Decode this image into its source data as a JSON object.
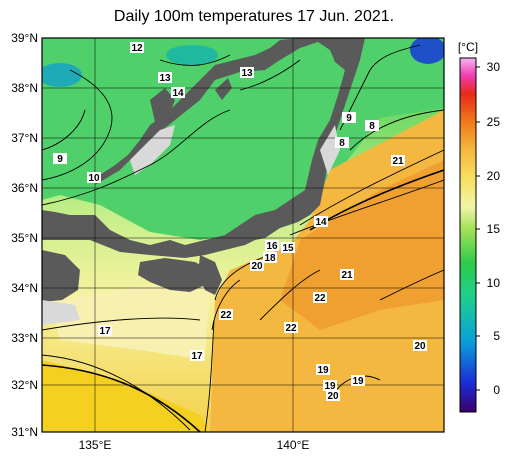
{
  "title": "Daily 100m temperatures 17 Jun. 2021.",
  "map": {
    "lat_labels": [
      "39°N",
      "38°N",
      "37°N",
      "36°N",
      "35°N",
      "34°N",
      "33°N",
      "32°N",
      "31°N"
    ],
    "lon_labels": [
      "135°E",
      "140°E"
    ],
    "contour_labels": [
      "12",
      "13",
      "14",
      "13",
      "9",
      "8",
      "8",
      "21",
      "9",
      "10",
      "14",
      "16",
      "15",
      "18",
      "20",
      "20",
      "21",
      "22",
      "22",
      "22",
      "17",
      "17",
      "19",
      "19",
      "20",
      "19"
    ]
  },
  "colorbar": {
    "unit": "[°C]",
    "ticks": [
      "30",
      "25",
      "20",
      "15",
      "10",
      "5",
      "0"
    ],
    "stops": [
      "#3a006a",
      "#1b2bd6",
      "#0aa0d8",
      "#1fd08a",
      "#2ec94a",
      "#a7e35a",
      "#f2f5a8",
      "#f6e060",
      "#f4b840",
      "#ef7a1a",
      "#e8281a",
      "#f03cb0",
      "#f8b6f4"
    ]
  },
  "colors": {
    "land": "#5a5a5a",
    "coast_light": "#d9d9d9",
    "grid": "#000000"
  }
}
